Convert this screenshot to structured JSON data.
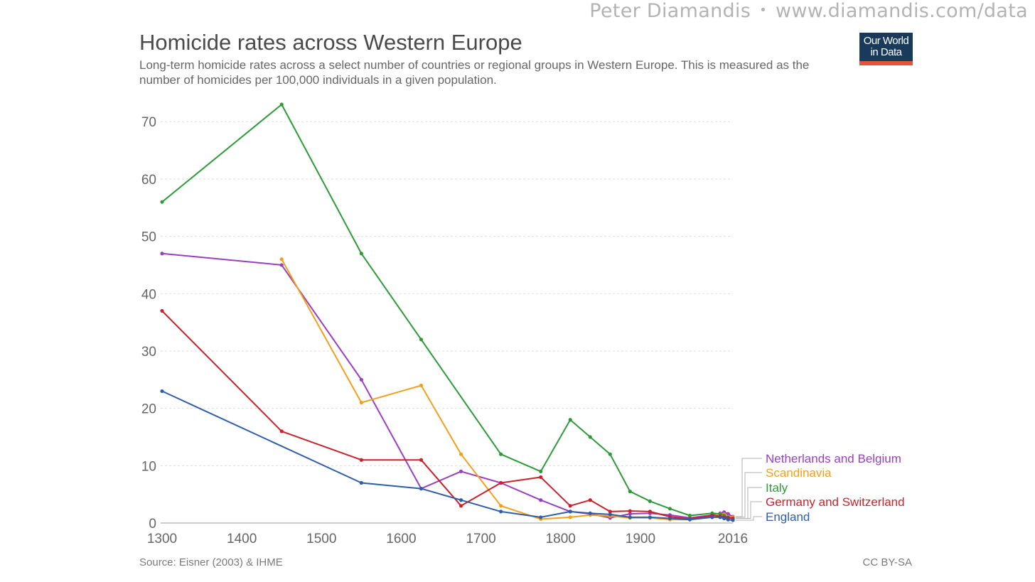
{
  "watermark": {
    "author": "Peter Diamandis",
    "separator": "•",
    "url": "www.diamandis.com/data"
  },
  "header": {
    "title": "Homicide rates across Western Europe",
    "subtitle": "Long-term homicide rates across a select number of countries or regional groups in Western Europe. This is measured as the number of homicides per 100,000 individuals in a given population."
  },
  "logo": {
    "line1": "Our World",
    "line2": "in Data",
    "bg_color": "#1a3a5c",
    "accent_color": "#e5533a"
  },
  "footer": {
    "source": "Source: Eisner (2003) & IHME",
    "license": "CC BY-SA"
  },
  "chart_data": {
    "type": "line",
    "title": "Homicide rates across Western Europe",
    "xlabel": "",
    "ylabel": "",
    "xlim": [
      1300,
      2016
    ],
    "ylim": [
      0,
      73
    ],
    "x_ticks": [
      1300,
      1400,
      1500,
      1600,
      1700,
      1800,
      1900,
      2016
    ],
    "y_ticks": [
      0,
      10,
      20,
      30,
      40,
      50,
      60,
      70
    ],
    "grid": true,
    "legend_position": "right",
    "series": [
      {
        "name": "Netherlands and Belgium",
        "color": "#9a3fbf",
        "points": [
          [
            1300,
            47
          ],
          [
            1450,
            45
          ],
          [
            1550,
            25
          ],
          [
            1625,
            6
          ],
          [
            1675,
            9
          ],
          [
            1725,
            7
          ],
          [
            1775,
            4
          ],
          [
            1812,
            2
          ],
          [
            1837,
            1.6
          ],
          [
            1862,
            0.9
          ],
          [
            1887,
            1.6
          ],
          [
            1912,
            1.7
          ],
          [
            1937,
            1.4
          ],
          [
            1962,
            0.9
          ],
          [
            1990,
            1.4
          ],
          [
            2000,
            1.7
          ],
          [
            2005,
            1.9
          ],
          [
            2010,
            1.6
          ],
          [
            2016,
            1.1
          ]
        ]
      },
      {
        "name": "Scandinavia",
        "color": "#f2a01c",
        "points": [
          [
            1450,
            46
          ],
          [
            1550,
            21
          ],
          [
            1625,
            24
          ],
          [
            1675,
            12
          ],
          [
            1725,
            3
          ],
          [
            1775,
            0.7
          ],
          [
            1812,
            1
          ],
          [
            1837,
            1.4
          ],
          [
            1862,
            1.2
          ],
          [
            1887,
            0.9
          ],
          [
            1912,
            0.9
          ],
          [
            1937,
            0.6
          ],
          [
            1962,
            0.6
          ],
          [
            1990,
            1.2
          ],
          [
            2000,
            1.6
          ],
          [
            2005,
            1.5
          ],
          [
            2010,
            1.1
          ],
          [
            2016,
            1.0
          ]
        ]
      },
      {
        "name": "Italy",
        "color": "#2e9b38",
        "points": [
          [
            1300,
            56
          ],
          [
            1450,
            73
          ],
          [
            1550,
            47
          ],
          [
            1625,
            32
          ],
          [
            1725,
            12
          ],
          [
            1775,
            9
          ],
          [
            1812,
            18
          ],
          [
            1837,
            15
          ],
          [
            1862,
            12
          ],
          [
            1887,
            5.5
          ],
          [
            1912,
            3.8
          ],
          [
            1937,
            2.5
          ],
          [
            1962,
            1.3
          ],
          [
            1990,
            1.7
          ],
          [
            2000,
            1.6
          ],
          [
            2005,
            1.3
          ],
          [
            2010,
            1.0
          ],
          [
            2016,
            0.8
          ]
        ]
      },
      {
        "name": "Germany and Switzerland",
        "color": "#c8232c",
        "points": [
          [
            1300,
            37
          ],
          [
            1450,
            16
          ],
          [
            1550,
            11
          ],
          [
            1625,
            11
          ],
          [
            1675,
            3
          ],
          [
            1725,
            7
          ],
          [
            1775,
            8
          ],
          [
            1812,
            3
          ],
          [
            1837,
            4
          ],
          [
            1862,
            2
          ],
          [
            1887,
            2.1
          ],
          [
            1912,
            2
          ],
          [
            1937,
            1.1
          ],
          [
            1962,
            0.7
          ],
          [
            1990,
            1.3
          ],
          [
            2000,
            1.2
          ],
          [
            2005,
            1.0
          ],
          [
            2010,
            0.9
          ],
          [
            2016,
            0.8
          ]
        ]
      },
      {
        "name": "England",
        "color": "#2f5ea8",
        "points": [
          [
            1300,
            23
          ],
          [
            1550,
            7
          ],
          [
            1625,
            6
          ],
          [
            1675,
            4
          ],
          [
            1725,
            2
          ],
          [
            1775,
            1
          ],
          [
            1812,
            2
          ],
          [
            1837,
            1.7
          ],
          [
            1862,
            1.5
          ],
          [
            1887,
            1.0
          ],
          [
            1912,
            1.0
          ],
          [
            1937,
            0.8
          ],
          [
            1962,
            0.6
          ],
          [
            1990,
            1.0
          ],
          [
            2000,
            1.0
          ],
          [
            2005,
            0.8
          ],
          [
            2010,
            0.6
          ],
          [
            2016,
            0.5
          ]
        ]
      }
    ]
  }
}
